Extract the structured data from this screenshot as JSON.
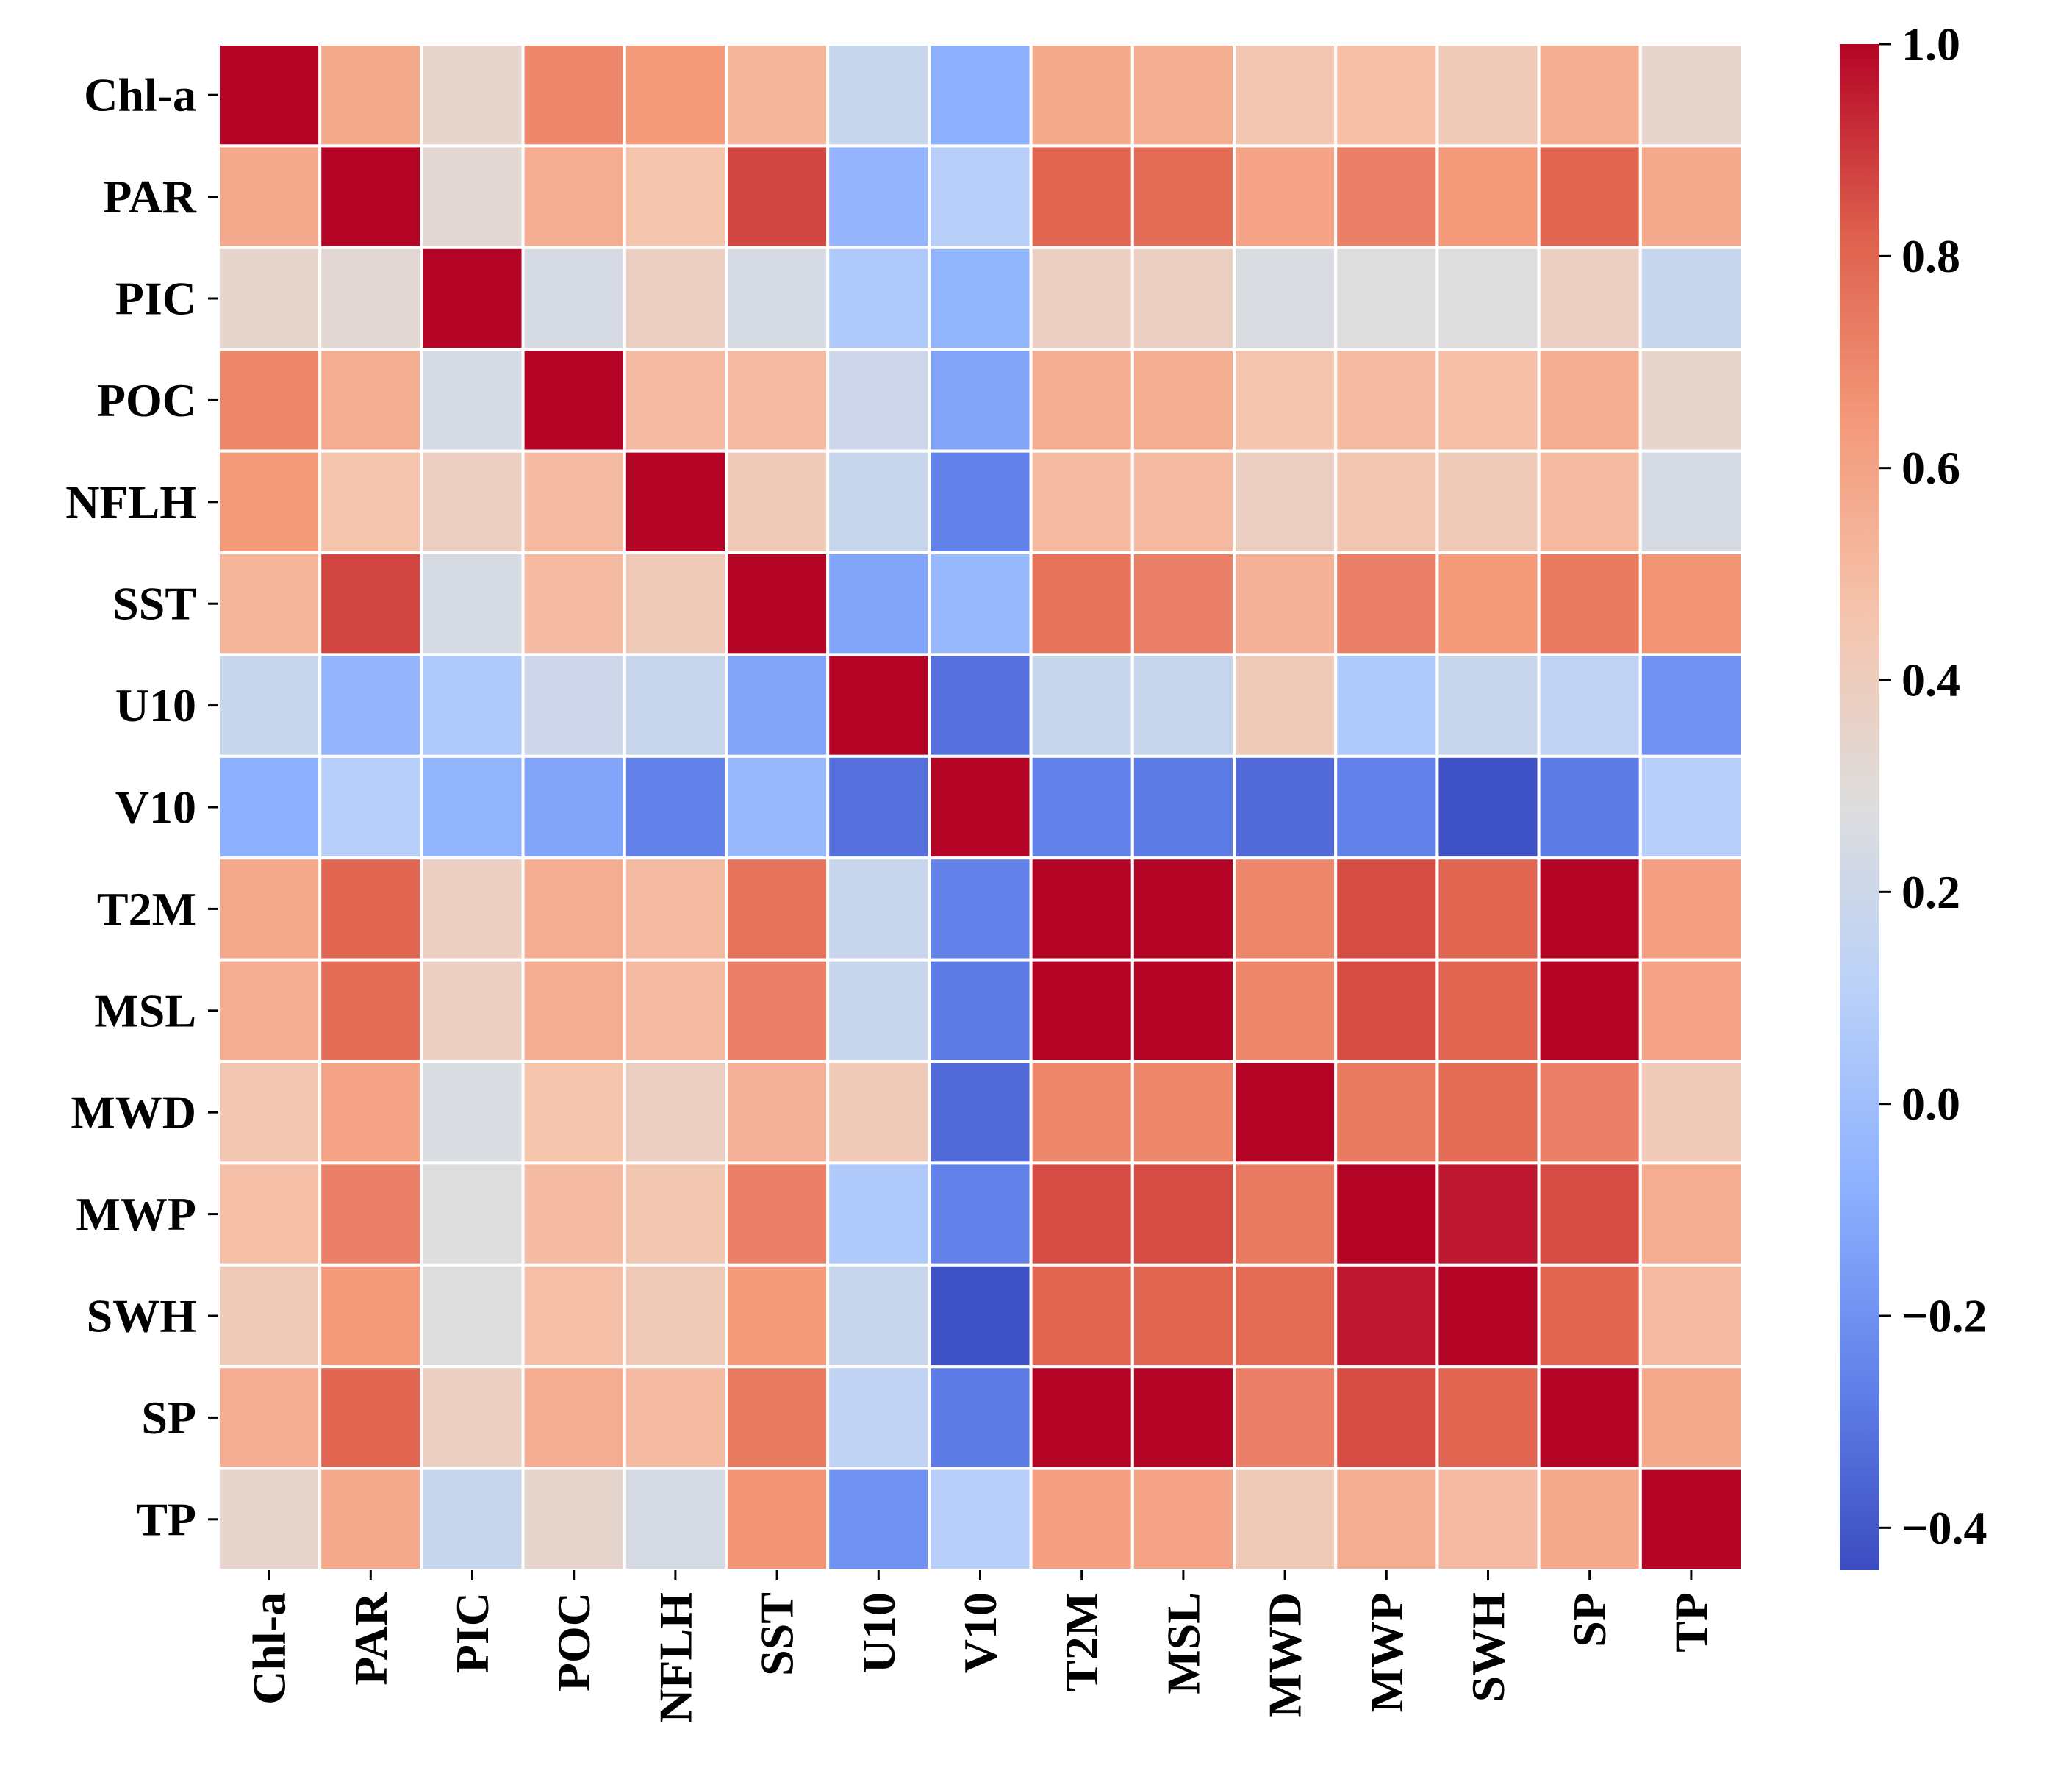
{
  "chart_data": {
    "type": "heatmap",
    "title": "",
    "xlabel": "",
    "ylabel": "",
    "row_labels": [
      "Chl-a",
      "PAR",
      "PIC",
      "POC",
      "NFLH",
      "SST",
      "U10",
      "V10",
      "T2M",
      "MSL",
      "MWD",
      "MWP",
      "SWH",
      "SP",
      "TP"
    ],
    "col_labels": [
      "Chl-a",
      "PAR",
      "PIC",
      "POC",
      "NFLH",
      "SST",
      "U10",
      "V10",
      "T2M",
      "MSL",
      "MWD",
      "MWP",
      "SWH",
      "SP",
      "TP"
    ],
    "values": [
      [
        1.0,
        0.58,
        0.34,
        0.7,
        0.64,
        0.52,
        0.18,
        -0.08,
        0.58,
        0.56,
        0.44,
        0.48,
        0.42,
        0.56,
        0.34
      ],
      [
        0.58,
        1.0,
        0.32,
        0.56,
        0.46,
        0.87,
        -0.05,
        0.1,
        0.8,
        0.78,
        0.6,
        0.72,
        0.64,
        0.8,
        0.58
      ],
      [
        0.34,
        0.32,
        1.0,
        0.24,
        0.38,
        0.24,
        0.06,
        -0.06,
        0.38,
        0.38,
        0.26,
        0.28,
        0.28,
        0.38,
        0.18
      ],
      [
        0.7,
        0.56,
        0.24,
        1.0,
        0.5,
        0.5,
        0.2,
        -0.13,
        0.56,
        0.56,
        0.46,
        0.5,
        0.48,
        0.56,
        0.34
      ],
      [
        0.64,
        0.46,
        0.38,
        0.5,
        1.0,
        0.42,
        0.18,
        -0.26,
        0.5,
        0.5,
        0.38,
        0.44,
        0.42,
        0.5,
        0.24
      ],
      [
        0.52,
        0.87,
        0.24,
        0.5,
        0.42,
        1.0,
        -0.13,
        -0.03,
        0.76,
        0.72,
        0.54,
        0.72,
        0.64,
        0.74,
        0.66
      ],
      [
        0.18,
        -0.05,
        0.06,
        0.2,
        0.18,
        -0.13,
        1.0,
        -0.32,
        0.18,
        0.18,
        0.42,
        0.06,
        0.18,
        0.14,
        -0.2
      ],
      [
        -0.08,
        0.1,
        -0.06,
        -0.13,
        -0.26,
        -0.03,
        -0.32,
        1.0,
        -0.26,
        -0.28,
        -0.34,
        -0.26,
        -0.42,
        -0.28,
        0.1
      ],
      [
        0.58,
        0.8,
        0.38,
        0.56,
        0.5,
        0.76,
        0.18,
        -0.26,
        1.0,
        1.0,
        0.7,
        0.86,
        0.8,
        1.0,
        0.62
      ],
      [
        0.56,
        0.78,
        0.38,
        0.56,
        0.5,
        0.72,
        0.18,
        -0.28,
        1.0,
        1.0,
        0.7,
        0.86,
        0.8,
        1.0,
        0.6
      ],
      [
        0.44,
        0.6,
        0.26,
        0.46,
        0.38,
        0.54,
        0.42,
        -0.34,
        0.7,
        0.7,
        1.0,
        0.74,
        0.78,
        0.72,
        0.42
      ],
      [
        0.48,
        0.72,
        0.28,
        0.5,
        0.44,
        0.72,
        0.06,
        -0.26,
        0.86,
        0.86,
        0.74,
        1.0,
        0.96,
        0.86,
        0.56
      ],
      [
        0.42,
        0.64,
        0.28,
        0.48,
        0.42,
        0.64,
        0.18,
        -0.42,
        0.8,
        0.8,
        0.78,
        0.96,
        1.0,
        0.8,
        0.5
      ],
      [
        0.56,
        0.8,
        0.38,
        0.56,
        0.5,
        0.74,
        0.14,
        -0.28,
        1.0,
        1.0,
        0.72,
        0.86,
        0.8,
        1.0,
        0.58
      ],
      [
        0.34,
        0.58,
        0.18,
        0.34,
        0.24,
        0.66,
        -0.2,
        0.1,
        0.62,
        0.6,
        0.42,
        0.56,
        0.5,
        0.58,
        1.0
      ]
    ],
    "colorbar": {
      "colormap": "coolwarm",
      "vmin": -0.44,
      "vmax": 1.0,
      "ticks": [
        1.0,
        0.8,
        0.6,
        0.4,
        0.2,
        0.0,
        -0.2,
        -0.4
      ],
      "tick_labels": [
        "1.0",
        "0.8",
        "0.6",
        "0.4",
        "0.2",
        "0.0",
        "−0.2",
        "−0.4"
      ]
    },
    "grid": true,
    "cell_border_color": "#ffffff"
  }
}
